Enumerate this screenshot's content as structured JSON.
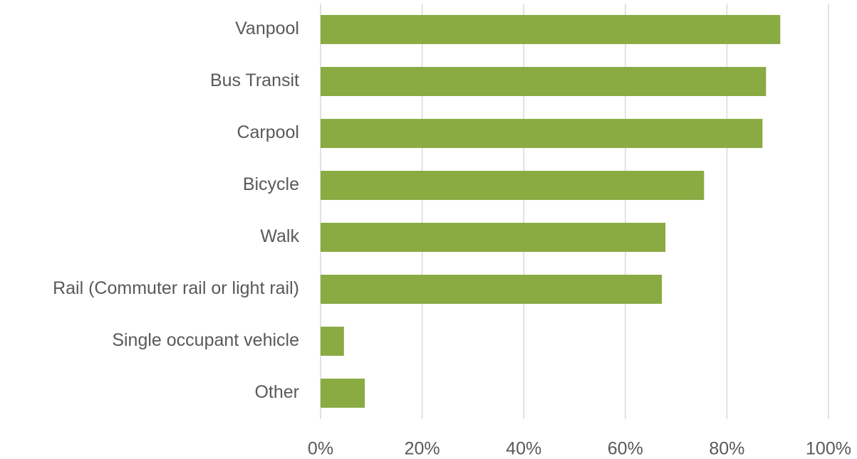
{
  "chart_data": {
    "type": "bar",
    "orientation": "horizontal",
    "categories": [
      "Vanpool",
      "Bus Transit",
      "Carpool",
      "Bicycle",
      "Walk",
      "Rail (Commuter rail or light rail)",
      "Single occupant vehicle",
      "Other"
    ],
    "values": [
      90.5,
      87.7,
      87.0,
      75.5,
      67.9,
      67.2,
      4.6,
      8.7
    ],
    "color": "#8aaa42",
    "xlim": [
      0,
      100
    ],
    "xticks": [
      {
        "value": 0,
        "label": "0%"
      },
      {
        "value": 20,
        "label": "20%"
      },
      {
        "value": 40,
        "label": "40%"
      },
      {
        "value": 60,
        "label": "60%"
      },
      {
        "value": 80,
        "label": "80%"
      },
      {
        "value": 100,
        "label": "100%"
      }
    ],
    "grid": true
  }
}
